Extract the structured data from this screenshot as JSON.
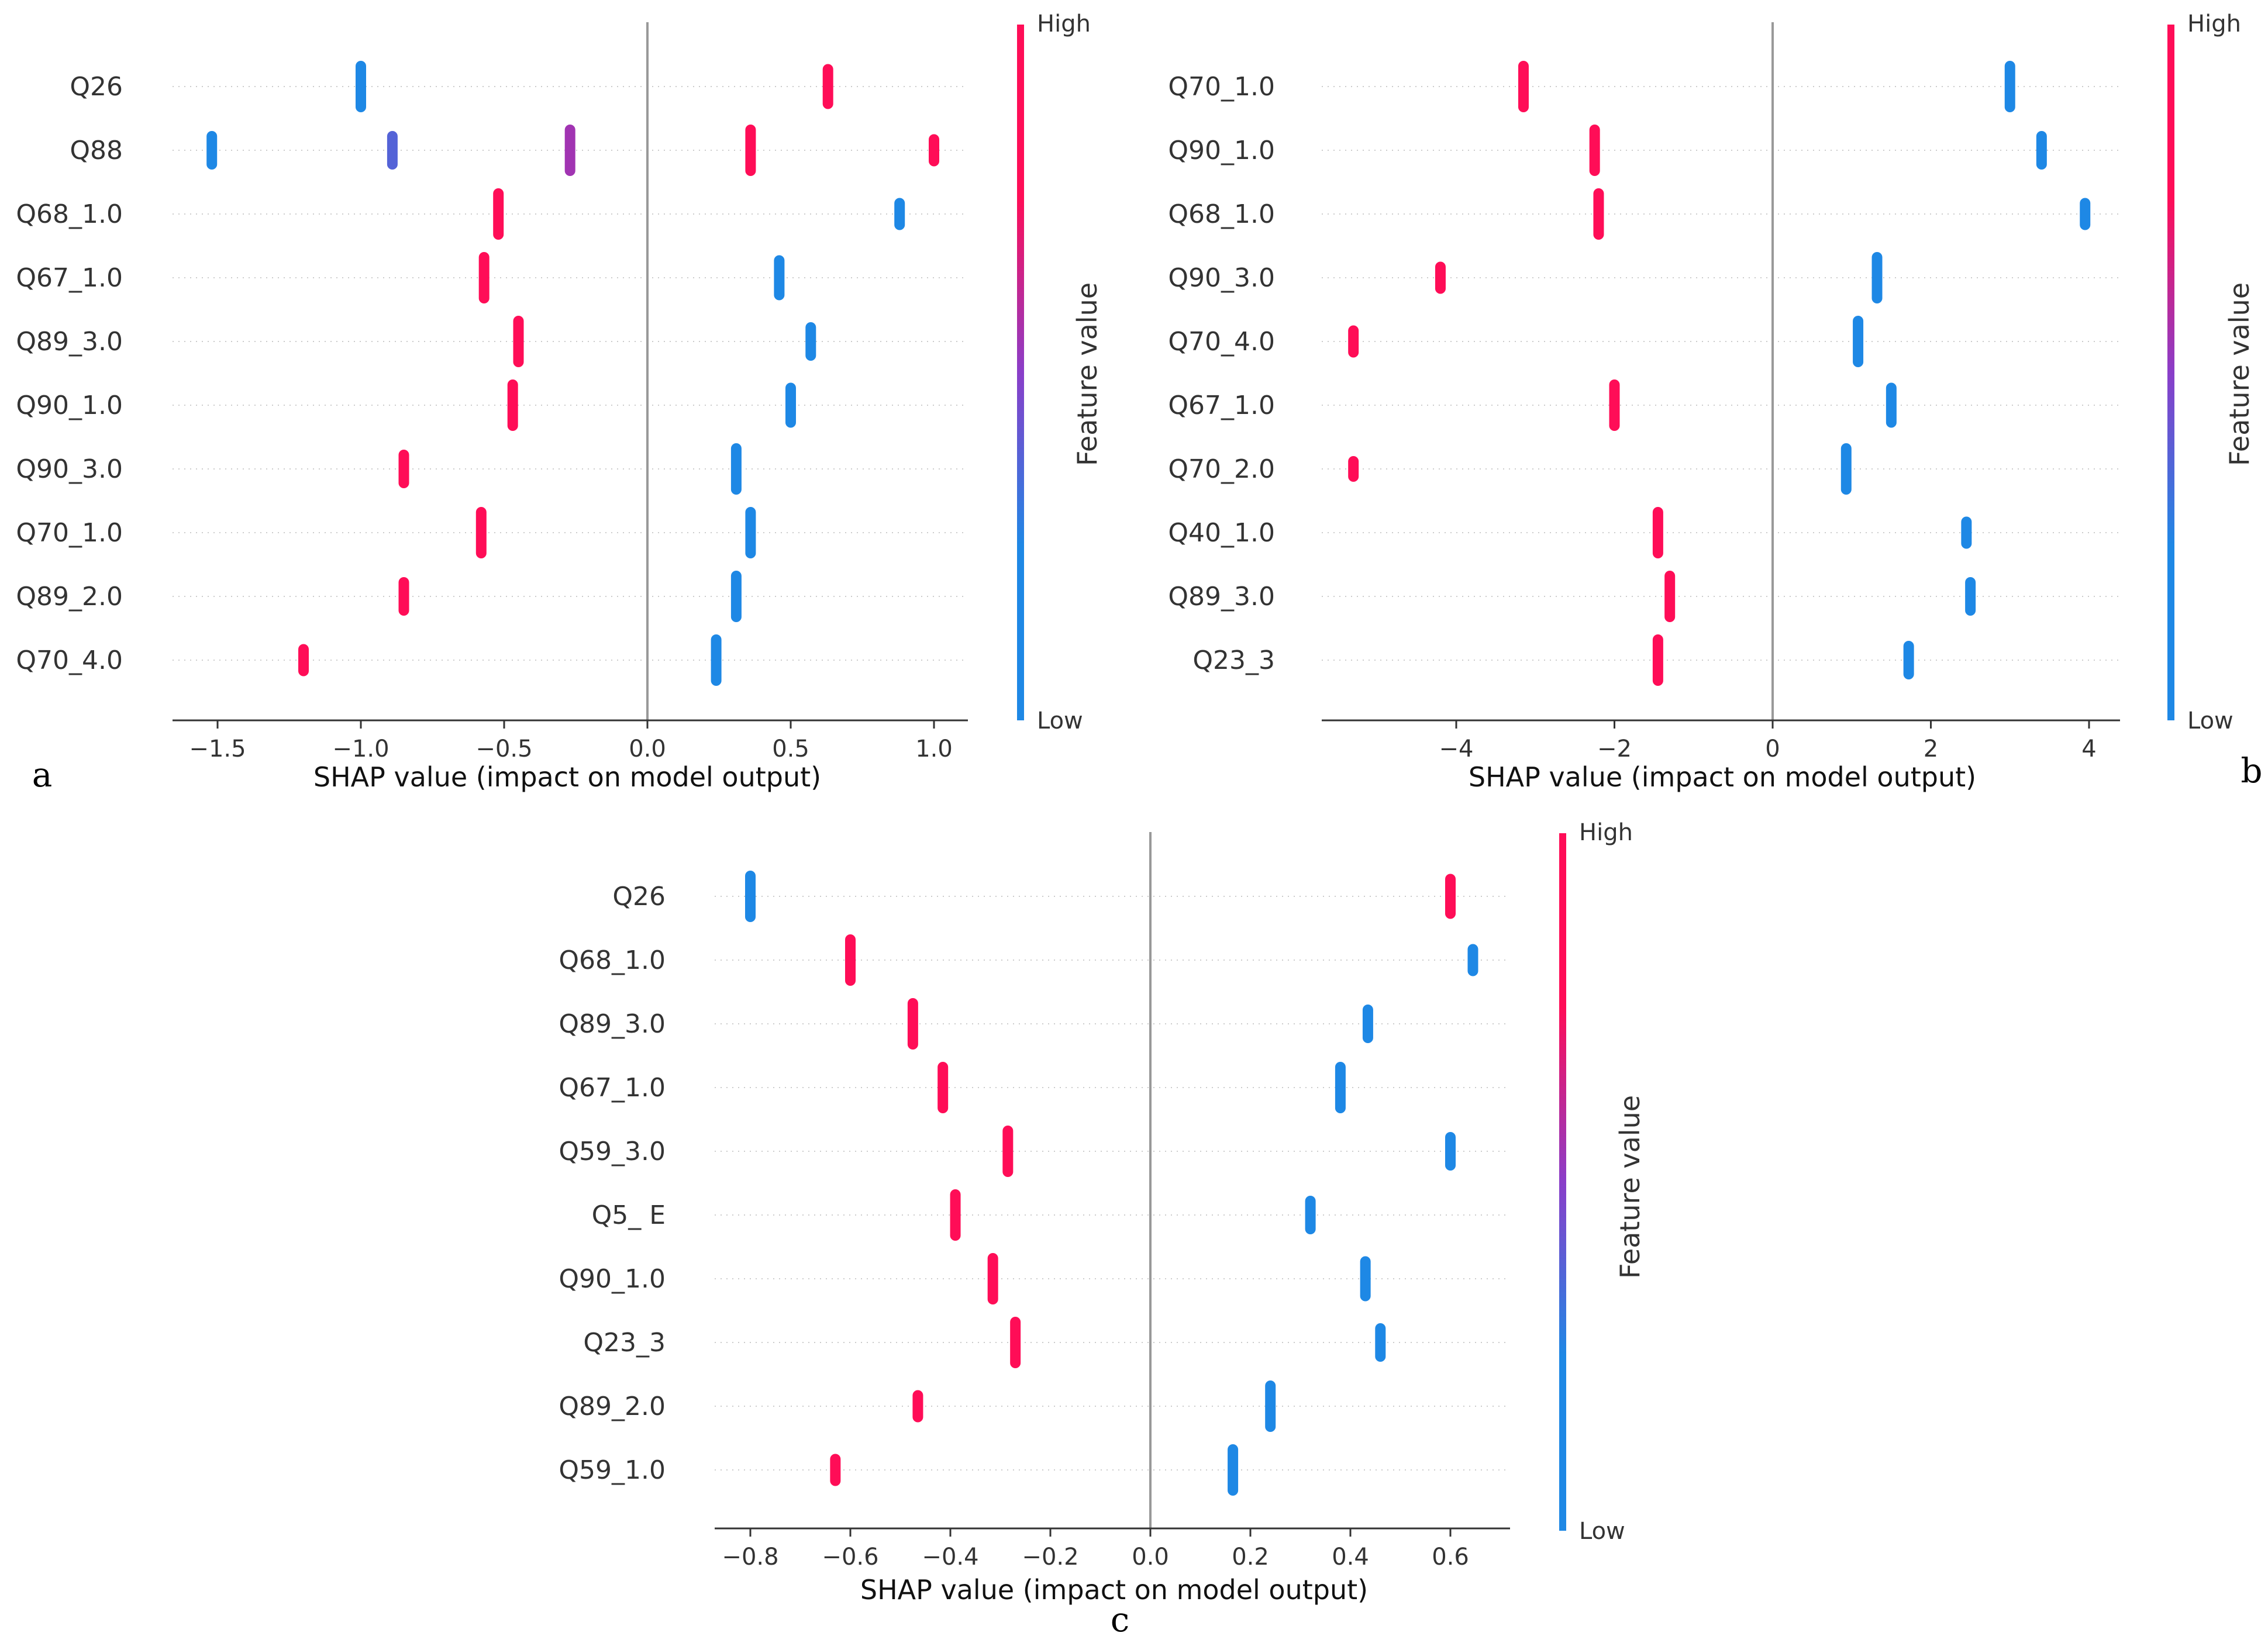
{
  "chart_data": [
    {
      "type": "scatter",
      "panel_label": "a",
      "xlabel": "SHAP value (impact on model output)",
      "xlim": [
        -1.65,
        1.12
      ],
      "xticks": [
        -1.5,
        -1.0,
        -0.5,
        0.0,
        0.5,
        1.0
      ],
      "xtick_labels": [
        "−1.5",
        "−1.0",
        "−0.5",
        "0.0",
        "0.5",
        "1.0"
      ],
      "features": [
        "Q26",
        "Q88",
        "Q68_1.0",
        "Q67_1.0",
        "Q89_3.0",
        "Q90_1.0",
        "Q90_3.0",
        "Q70_1.0",
        "Q89_2.0",
        "Q70_4.0"
      ],
      "points": [
        {
          "feature": 0,
          "x": -1.0,
          "v": 0.0,
          "n": 6
        },
        {
          "feature": 0,
          "x": 0.63,
          "v": 1.0,
          "n": 5
        },
        {
          "feature": 1,
          "x": -1.52,
          "v": 0.0,
          "n": 4
        },
        {
          "feature": 1,
          "x": -0.89,
          "v": 0.25,
          "n": 4
        },
        {
          "feature": 1,
          "x": -0.27,
          "v": 0.6,
          "n": 6
        },
        {
          "feature": 1,
          "x": 0.36,
          "v": 1.0,
          "n": 6
        },
        {
          "feature": 1,
          "x": 1.0,
          "v": 1.0,
          "n": 3
        },
        {
          "feature": 2,
          "x": -0.52,
          "v": 1.0,
          "n": 6
        },
        {
          "feature": 2,
          "x": 0.88,
          "v": 0.0,
          "n": 3
        },
        {
          "feature": 3,
          "x": -0.57,
          "v": 1.0,
          "n": 6
        },
        {
          "feature": 3,
          "x": 0.46,
          "v": 0.0,
          "n": 5
        },
        {
          "feature": 4,
          "x": -0.45,
          "v": 1.0,
          "n": 6
        },
        {
          "feature": 4,
          "x": 0.57,
          "v": 0.0,
          "n": 4
        },
        {
          "feature": 5,
          "x": -0.47,
          "v": 1.0,
          "n": 6
        },
        {
          "feature": 5,
          "x": 0.5,
          "v": 0.0,
          "n": 5
        },
        {
          "feature": 6,
          "x": -0.85,
          "v": 1.0,
          "n": 4
        },
        {
          "feature": 6,
          "x": 0.31,
          "v": 0.0,
          "n": 6
        },
        {
          "feature": 7,
          "x": -0.58,
          "v": 1.0,
          "n": 6
        },
        {
          "feature": 7,
          "x": 0.36,
          "v": 0.0,
          "n": 6
        },
        {
          "feature": 8,
          "x": -0.85,
          "v": 1.0,
          "n": 4
        },
        {
          "feature": 8,
          "x": 0.31,
          "v": 0.0,
          "n": 6
        },
        {
          "feature": 9,
          "x": -1.2,
          "v": 1.0,
          "n": 3
        },
        {
          "feature": 9,
          "x": 0.24,
          "v": 0.0,
          "n": 6
        }
      ],
      "colorbar": {
        "high": "High",
        "low": "Low",
        "title": "Feature value"
      }
    },
    {
      "type": "scatter",
      "panel_label": "b",
      "xlabel": "SHAP value (impact on model output)",
      "xlim": [
        -5.6,
        4.4
      ],
      "xticks": [
        -4,
        -2,
        0,
        2,
        4
      ],
      "xtick_labels": [
        "−4",
        "−2",
        "0",
        "2",
        "4"
      ],
      "features": [
        "Q70_1.0",
        "Q90_1.0",
        "Q68_1.0",
        "Q90_3.0",
        "Q70_4.0",
        "Q67_1.0",
        "Q70_2.0",
        "Q40_1.0",
        "Q89_3.0",
        "Q23_3"
      ],
      "points": [
        {
          "feature": 0,
          "x": -3.15,
          "v": 1.0,
          "n": 6
        },
        {
          "feature": 0,
          "x": 3.0,
          "v": 0.0,
          "n": 6
        },
        {
          "feature": 1,
          "x": -2.25,
          "v": 1.0,
          "n": 6
        },
        {
          "feature": 1,
          "x": 3.4,
          "v": 0.0,
          "n": 4
        },
        {
          "feature": 2,
          "x": -2.2,
          "v": 1.0,
          "n": 6
        },
        {
          "feature": 2,
          "x": 3.95,
          "v": 0.0,
          "n": 3
        },
        {
          "feature": 3,
          "x": -4.2,
          "v": 1.0,
          "n": 3
        },
        {
          "feature": 3,
          "x": 1.32,
          "v": 0.0,
          "n": 6
        },
        {
          "feature": 4,
          "x": -5.3,
          "v": 1.0,
          "n": 3
        },
        {
          "feature": 4,
          "x": 1.08,
          "v": 0.0,
          "n": 6
        },
        {
          "feature": 5,
          "x": -2.0,
          "v": 1.0,
          "n": 6
        },
        {
          "feature": 5,
          "x": 1.5,
          "v": 0.0,
          "n": 5
        },
        {
          "feature": 6,
          "x": -5.3,
          "v": 1.0,
          "n": 2
        },
        {
          "feature": 6,
          "x": 0.93,
          "v": 0.0,
          "n": 6
        },
        {
          "feature": 7,
          "x": -1.45,
          "v": 1.0,
          "n": 6
        },
        {
          "feature": 7,
          "x": 2.45,
          "v": 0.0,
          "n": 3
        },
        {
          "feature": 8,
          "x": -1.3,
          "v": 1.0,
          "n": 6
        },
        {
          "feature": 8,
          "x": 2.5,
          "v": 0.0,
          "n": 4
        },
        {
          "feature": 9,
          "x": -1.45,
          "v": 1.0,
          "n": 6
        },
        {
          "feature": 9,
          "x": 1.72,
          "v": 0.0,
          "n": 4
        }
      ],
      "colorbar": {
        "high": "High",
        "low": "Low",
        "title": "Feature value"
      }
    },
    {
      "type": "scatter",
      "panel_label": "c",
      "xlabel": "SHAP value (impact on model output)",
      "xlim": [
        -0.875,
        0.72
      ],
      "xticks": [
        -0.8,
        -0.6,
        -0.4,
        -0.2,
        0.0,
        0.2,
        0.4,
        0.6
      ],
      "xtick_labels": [
        "−0.8",
        "−0.6",
        "−0.4",
        "−0.2",
        "0.0",
        "0.2",
        "0.4",
        "0.6"
      ],
      "features": [
        "Q26",
        "Q68_1.0",
        "Q89_3.0",
        "Q67_1.0",
        "Q59_3.0",
        "Q5_    E",
        "Q90_1.0",
        "Q23_3",
        "Q89_2.0",
        "Q59_1.0"
      ],
      "points": [
        {
          "feature": 0,
          "x": -0.8,
          "v": 0.0,
          "n": 6
        },
        {
          "feature": 0,
          "x": 0.6,
          "v": 1.0,
          "n": 5
        },
        {
          "feature": 1,
          "x": -0.6,
          "v": 1.0,
          "n": 6
        },
        {
          "feature": 1,
          "x": 0.645,
          "v": 0.0,
          "n": 3
        },
        {
          "feature": 2,
          "x": -0.475,
          "v": 1.0,
          "n": 6
        },
        {
          "feature": 2,
          "x": 0.435,
          "v": 0.0,
          "n": 4
        },
        {
          "feature": 3,
          "x": -0.415,
          "v": 1.0,
          "n": 6
        },
        {
          "feature": 3,
          "x": 0.38,
          "v": 0.0,
          "n": 6
        },
        {
          "feature": 4,
          "x": -0.285,
          "v": 1.0,
          "n": 6
        },
        {
          "feature": 4,
          "x": 0.6,
          "v": 0.0,
          "n": 4
        },
        {
          "feature": 5,
          "x": -0.39,
          "v": 1.0,
          "n": 6
        },
        {
          "feature": 5,
          "x": 0.32,
          "v": 0.0,
          "n": 4
        },
        {
          "feature": 6,
          "x": -0.315,
          "v": 1.0,
          "n": 6
        },
        {
          "feature": 6,
          "x": 0.43,
          "v": 0.0,
          "n": 5
        },
        {
          "feature": 7,
          "x": -0.27,
          "v": 1.0,
          "n": 6
        },
        {
          "feature": 7,
          "x": 0.46,
          "v": 0.0,
          "n": 4
        },
        {
          "feature": 8,
          "x": -0.465,
          "v": 1.0,
          "n": 3
        },
        {
          "feature": 8,
          "x": 0.24,
          "v": 0.0,
          "n": 6
        },
        {
          "feature": 9,
          "x": -0.63,
          "v": 1.0,
          "n": 3
        },
        {
          "feature": 9,
          "x": 0.165,
          "v": 0.0,
          "n": 6
        }
      ],
      "colorbar": {
        "high": "High",
        "low": "Low",
        "title": "Feature value"
      }
    }
  ],
  "colors": {
    "low": "#1e88e5",
    "high": "#ff0d57",
    "grid": "#cccccc",
    "zero_line": "#999999"
  }
}
